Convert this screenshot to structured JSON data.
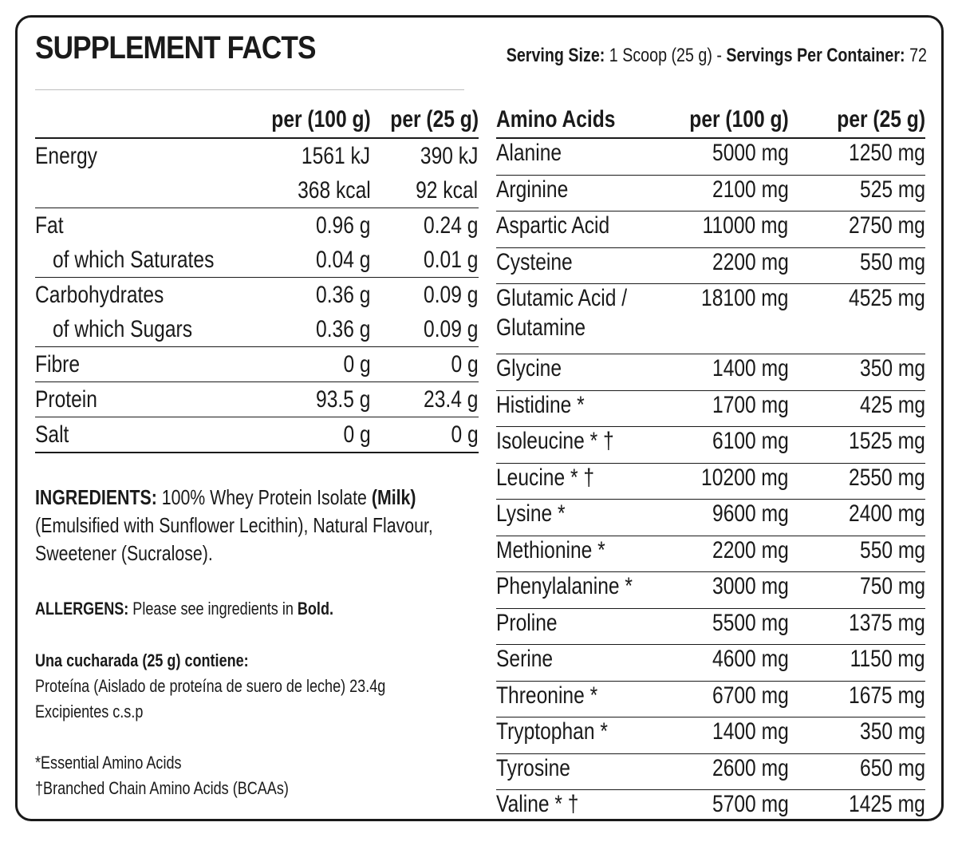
{
  "title": "SUPPLEMENT FACTS",
  "serving": {
    "size_label": "Serving Size:",
    "size_value": "1 Scoop (25 g)",
    "dash": "-",
    "per_container_label": "Servings Per Container:",
    "per_container_value": "72"
  },
  "nutrition": {
    "headers": [
      "",
      "per (100 g)",
      "per (25 g)"
    ],
    "energy": {
      "label": "Energy",
      "per100_kj": "1561 kJ",
      "per25_kj": "390 kJ",
      "per100_kcal": "368 kcal",
      "per25_kcal": "92 kcal"
    },
    "fat": {
      "label": "Fat",
      "per100": "0.96 g",
      "per25": "0.24 g"
    },
    "saturates": {
      "label": "of which Saturates",
      "per100": "0.04 g",
      "per25": "0.01 g"
    },
    "carbohydrates": {
      "label": "Carbohydrates",
      "per100": "0.36 g",
      "per25": "0.09 g"
    },
    "sugars": {
      "label": "of which Sugars",
      "per100": "0.36 g",
      "per25": "0.09 g"
    },
    "fibre": {
      "label": "Fibre",
      "per100": "0 g",
      "per25": "0 g"
    },
    "protein": {
      "label": "Protein",
      "per100": "93.5 g",
      "per25": "23.4 g"
    },
    "salt": {
      "label": "Salt",
      "per100": "0 g",
      "per25": "0 g"
    }
  },
  "amino": {
    "headers": [
      "Amino Acids",
      "per (100 g)",
      "per (25 g)"
    ],
    "rows": [
      {
        "name": "Alanine",
        "per100": "5000 mg",
        "per25": "1250 mg"
      },
      {
        "name": "Arginine",
        "per100": "2100 mg",
        "per25": "525 mg"
      },
      {
        "name": "Aspartic Acid",
        "per100": "11000 mg",
        "per25": "2750 mg"
      },
      {
        "name": "Cysteine",
        "per100": "2200 mg",
        "per25": "550 mg"
      },
      {
        "name": "Glutamic Acid /",
        "name2": "Glutamine",
        "per100": "18100 mg",
        "per25": "4525 mg"
      },
      {
        "name": "Glycine",
        "per100": "1400 mg",
        "per25": "350 mg"
      },
      {
        "name": "Histidine *",
        "per100": "1700 mg",
        "per25": "425 mg"
      },
      {
        "name": "Isoleucine * †",
        "per100": "6100 mg",
        "per25": "1525 mg"
      },
      {
        "name": "Leucine * †",
        "per100": "10200 mg",
        "per25": "2550 mg"
      },
      {
        "name": "Lysine *",
        "per100": "9600 mg",
        "per25": "2400 mg"
      },
      {
        "name": "Methionine *",
        "per100": "2200 mg",
        "per25": "550 mg"
      },
      {
        "name": "Phenylalanine *",
        "per100": "3000 mg",
        "per25": "750 mg"
      },
      {
        "name": "Proline",
        "per100": "5500 mg",
        "per25": "1375 mg"
      },
      {
        "name": "Serine",
        "per100": "4600 mg",
        "per25": "1150 mg"
      },
      {
        "name": "Threonine *",
        "per100": "6700 mg",
        "per25": "1675 mg"
      },
      {
        "name": "Tryptophan *",
        "per100": "1400 mg",
        "per25": "350 mg"
      },
      {
        "name": "Tyrosine",
        "per100": "2600 mg",
        "per25": "650 mg"
      },
      {
        "name": "Valine * †",
        "per100": "5700 mg",
        "per25": "1425 mg"
      }
    ]
  },
  "ingredients": {
    "label": "INGREDIENTS:",
    "text1": "100% Whey Protein Isolate",
    "allergen": "(Milk)",
    "line2": "(Emulsified with Sunflower Lecithin), Natural Flavour,",
    "line3": "Sweetener (Sucralose)."
  },
  "allergens": {
    "label": "ALLERGENS:",
    "text": "Please see ingredients in",
    "bold": "Bold."
  },
  "spanish": {
    "heading": "Una cucharada (25 g) contiene:",
    "line1": "Proteína (Aislado de proteína de suero de leche) 23.4g",
    "line2": "Excipientes c.s.p"
  },
  "footnotes": {
    "essential": "*Essential Amino Acids",
    "bcaa": "†Branched Chain Amino Acids (BCAAs)"
  }
}
